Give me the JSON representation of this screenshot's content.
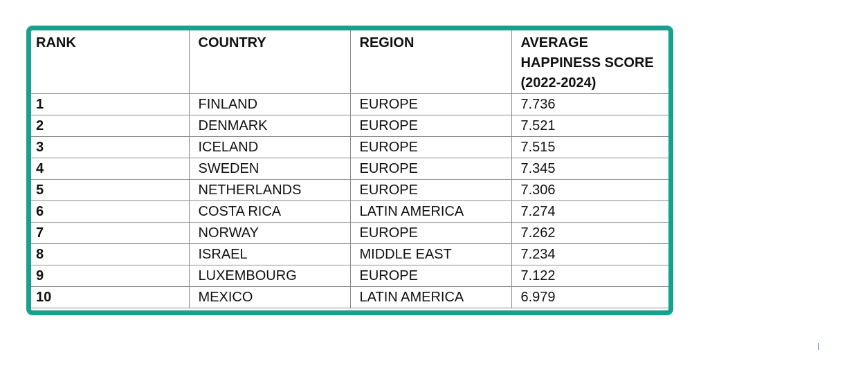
{
  "table": {
    "headers": {
      "rank": "RANK",
      "country": "COUNTRY",
      "region": "REGION",
      "score_line1": "AVERAGE",
      "score_line2": "HAPPINESS SCORE",
      "score_line3": "(2022-2024)"
    },
    "rows": [
      {
        "rank": "1",
        "country": "FINLAND",
        "region": "EUROPE",
        "score": "7.736"
      },
      {
        "rank": "2",
        "country": "DENMARK",
        "region": "EUROPE",
        "score": "7.521"
      },
      {
        "rank": "3",
        "country": "ICELAND",
        "region": "EUROPE",
        "score": "7.515"
      },
      {
        "rank": "4",
        "country": "SWEDEN",
        "region": "EUROPE",
        "score": "7.345"
      },
      {
        "rank": "5",
        "country": "NETHERLANDS",
        "region": "EUROPE",
        "score": "7.306"
      },
      {
        "rank": "6",
        "country": "COSTA RICA",
        "region": "LATIN AMERICA",
        "score": "7.274"
      },
      {
        "rank": "7",
        "country": "NORWAY",
        "region": "EUROPE",
        "score": "7.262"
      },
      {
        "rank": "8",
        "country": "ISRAEL",
        "region": "MIDDLE EAST",
        "score": "7.234"
      },
      {
        "rank": "9",
        "country": "LUXEMBOURG",
        "region": "EUROPE",
        "score": "7.122"
      },
      {
        "rank": "10",
        "country": "MEXICO",
        "region": "LATIN AMERICA",
        "score": "6.979"
      }
    ]
  },
  "colors": {
    "frame_border": "#17a08e",
    "grid_lines": "#8c8c8c",
    "text": "#111111"
  }
}
